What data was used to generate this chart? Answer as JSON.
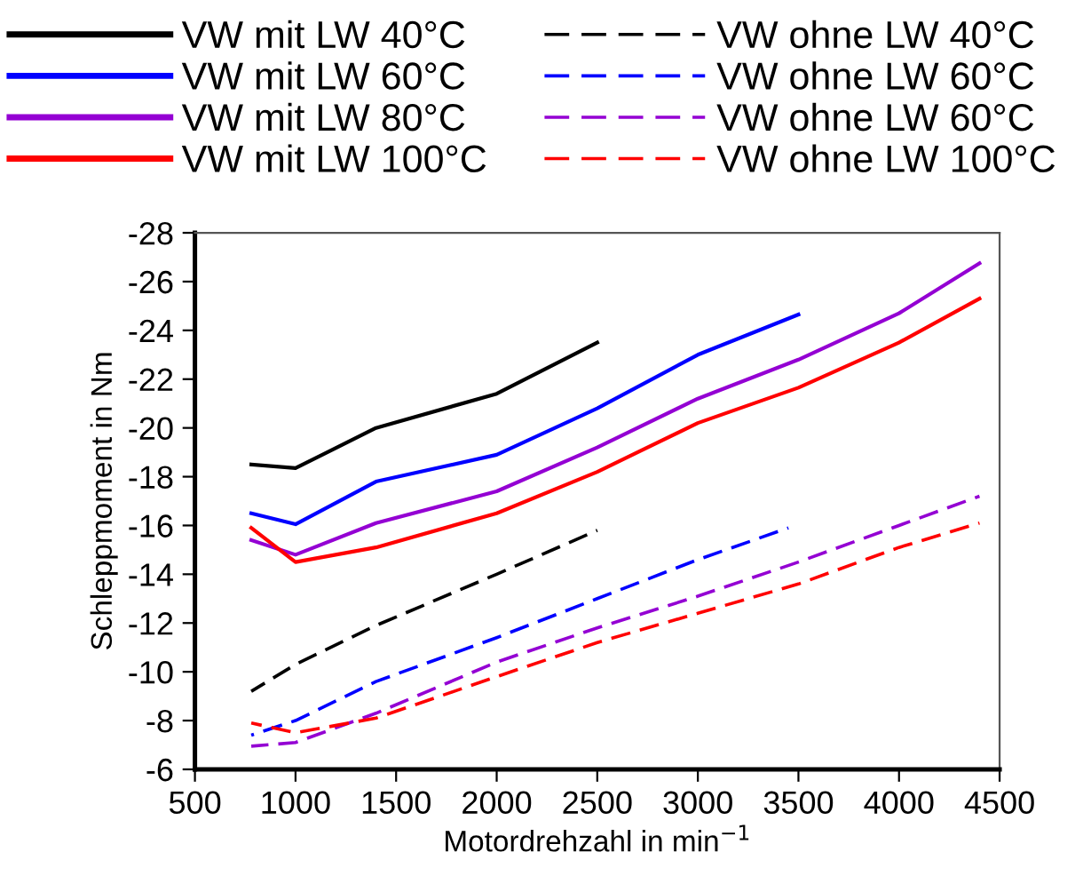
{
  "chart_data": {
    "type": "line",
    "xlabel": "Motordrehzahl in min$^{−1}$",
    "ylabel": "Schleppmoment in Nm",
    "xlim": [
      500,
      4500
    ],
    "xticks": [
      500,
      1000,
      1500,
      2000,
      2500,
      3000,
      3500,
      4000,
      4500
    ],
    "ylim": [
      -6,
      -28
    ],
    "yticks": [
      -6,
      -8,
      -10,
      -12,
      -14,
      -16,
      -18,
      -20,
      -22,
      -24,
      -26,
      -28
    ],
    "grid": false,
    "legend": "top",
    "marker": "none",
    "series": [
      {
        "name": "VW mit LW 40°C",
        "color": "#000000",
        "line_style": "solid",
        "x": [
          780,
          1000,
          1400,
          2000,
          2500
        ],
        "values": [
          -18.5,
          -18.35,
          -20,
          -21.4,
          -23.5
        ]
      },
      {
        "name": "VW mit LW 60°C",
        "color": "#0000ff",
        "line_style": "solid",
        "x": [
          780,
          1000,
          1400,
          2000,
          2500,
          3000,
          3500
        ],
        "values": [
          -16.5,
          -16.05,
          -17.8,
          -18.9,
          -20.8,
          -23.0,
          -24.65
        ]
      },
      {
        "name": "VW mit LW 80°C",
        "color": "#9400d3",
        "line_style": "solid",
        "x": [
          780,
          1000,
          1400,
          2000,
          2500,
          3000,
          3500,
          4000,
          4400
        ],
        "values": [
          -15.4,
          -14.8,
          -16.1,
          -17.4,
          -19.2,
          -21.2,
          -22.8,
          -24.7,
          -26.75
        ]
      },
      {
        "name": "VW mit LW 100°C",
        "color": "#ff0000",
        "line_style": "solid",
        "x": [
          780,
          1000,
          1400,
          2000,
          2500,
          3000,
          3500,
          4000,
          4400
        ],
        "values": [
          -15.9,
          -14.5,
          -15.1,
          -16.5,
          -18.2,
          -20.2,
          -21.65,
          -23.5,
          -25.3
        ]
      },
      {
        "name": "VW ohne LW 40°C",
        "color": "#000000",
        "line_style": "dashed",
        "x": [
          780,
          1000,
          1400,
          2000,
          2500
        ],
        "values": [
          -9.2,
          -10.3,
          -11.9,
          -14.0,
          -15.8
        ]
      },
      {
        "name": "VW ohne LW 60°C",
        "color": "#0000ff",
        "line_style": "dashed",
        "x": [
          780,
          1000,
          1400,
          2000,
          2500,
          3000,
          3450
        ],
        "values": [
          -7.4,
          -8.0,
          -9.6,
          -11.4,
          -13.0,
          -14.6,
          -15.9
        ]
      },
      {
        "name": "VW ohne LW 60°C",
        "color": "#9400d3",
        "line_style": "dashed",
        "x": [
          780,
          1000,
          1400,
          2000,
          2500,
          3000,
          3500,
          4000,
          4400
        ],
        "values": [
          -6.95,
          -7.1,
          -8.3,
          -10.4,
          -11.8,
          -13.1,
          -14.5,
          -16.0,
          -17.2
        ]
      },
      {
        "name": "VW ohne LW 100°C",
        "color": "#ff0000",
        "line_style": "dashed",
        "x": [
          780,
          1000,
          1400,
          2000,
          2500,
          3000,
          3500,
          4000,
          4400
        ],
        "values": [
          -7.9,
          -7.5,
          -8.1,
          -9.8,
          -11.2,
          -12.4,
          -13.6,
          -15.1,
          -16.1
        ]
      }
    ]
  }
}
